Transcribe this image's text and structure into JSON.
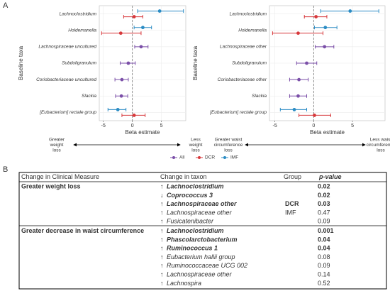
{
  "panel_a_label": "A",
  "chart_data": [
    {
      "type": "forest",
      "x_label": "Beta estimate",
      "y_label": "Baseline taxa",
      "categories": [
        "Lachnoclostridium",
        "Holdemanella",
        "Lachnospiraceae  uncultured",
        "Subdoligranulum",
        "Coriobacteriaceae uncultured",
        "Slackia",
        "[Eubacterium] rectale group"
      ],
      "series": [
        {
          "name": "All",
          "color": "#7b4fa8",
          "values": [
            null,
            null,
            1.5,
            -0.7,
            -1.8,
            -1.9,
            null
          ],
          "lower": [
            null,
            null,
            0.4,
            -2.1,
            -3.0,
            -2.9,
            null
          ],
          "upper": [
            null,
            null,
            2.7,
            0.5,
            -0.7,
            -0.8,
            null
          ]
        },
        {
          "name": "DCR",
          "color": "#d7383b",
          "values": [
            0.3,
            -2.0,
            null,
            null,
            null,
            null,
            0.3
          ],
          "lower": [
            -1.5,
            -5.3,
            null,
            null,
            null,
            null,
            -1.8
          ],
          "upper": [
            1.8,
            1.5,
            null,
            null,
            null,
            null,
            2.2
          ]
        },
        {
          "name": "IMF",
          "color": "#2b8cc4",
          "values": [
            4.7,
            1.8,
            null,
            null,
            null,
            null,
            -2.5
          ],
          "lower": [
            0.9,
            0.3,
            null,
            null,
            null,
            null,
            -4.2
          ],
          "upper": [
            8.8,
            3.3,
            null,
            null,
            null,
            null,
            -1.1
          ]
        }
      ],
      "xlim": [
        -5.7,
        9.2
      ],
      "xticks": [
        -5,
        0,
        5
      ],
      "ref_line": 0,
      "grid": true,
      "left_annotation": [
        "Greater",
        "weight",
        "loss"
      ],
      "right_annotation": [
        "Less",
        "weight",
        "loss"
      ]
    },
    {
      "type": "forest",
      "x_label": "Beta estimate",
      "y_label": "Baseline taxa",
      "categories": [
        "Lachnoclostridium",
        "Holdemanella",
        "Lachnospiraceae  other",
        "Subdoligranulum",
        "Coriobacteriaceae other",
        "Slackia",
        "[Eubacterium] rectale group"
      ],
      "series": [
        {
          "name": "All",
          "color": "#7b4fa8",
          "values": [
            null,
            null,
            1.4,
            -0.9,
            -1.9,
            -2.0,
            null
          ],
          "lower": [
            null,
            null,
            0.2,
            -2.2,
            -3.1,
            -3.1,
            null
          ],
          "upper": [
            null,
            null,
            2.6,
            0.4,
            -0.7,
            -0.9,
            null
          ]
        },
        {
          "name": "DCR",
          "color": "#d7383b",
          "values": [
            0.3,
            -2.0,
            null,
            null,
            null,
            null,
            0.1
          ],
          "lower": [
            -1.2,
            -5.3,
            null,
            null,
            null,
            null,
            -1.9
          ],
          "upper": [
            1.7,
            1.2,
            null,
            null,
            null,
            null,
            2.2
          ]
        },
        {
          "name": "IMF",
          "color": "#2b8cc4",
          "values": [
            4.7,
            1.5,
            null,
            null,
            null,
            null,
            -2.5
          ],
          "lower": [
            0.9,
            0.1,
            null,
            null,
            null,
            null,
            -4.3
          ],
          "upper": [
            8.4,
            3.0,
            null,
            null,
            null,
            null,
            -0.9
          ]
        }
      ],
      "xlim": [
        -5.7,
        9.2
      ],
      "xticks": [
        -5,
        0,
        5
      ],
      "ref_line": 0,
      "grid": true,
      "left_annotation": [
        "Greater waist",
        "circumference",
        "loss"
      ],
      "right_annotation": [
        "Less waist",
        "circumference",
        "loss"
      ]
    }
  ],
  "panel_b_label": "B",
  "table": {
    "header": [
      "Change in Clinical Measure",
      "Change in taxon",
      "Group",
      "p-value"
    ],
    "sections": [
      {
        "measure": "Greater weight loss",
        "rows": [
          {
            "direction": "↑",
            "taxon": "Lachnoclostridium",
            "p": 0.02,
            "significant": true
          },
          {
            "direction": "↓",
            "taxon": "Coprococcus 3",
            "p": 0.02,
            "significant": true
          },
          {
            "direction": "↑",
            "taxon": "Lachnospiraceae other",
            "group": "DCR",
            "p": 0.03,
            "significant": true
          },
          {
            "direction": "↑",
            "taxon": "Lachnospiraceae other",
            "group": "IMF",
            "p": 0.47,
            "significant": false
          },
          {
            "direction": "↑",
            "taxon": "Fusicatenibacter",
            "p": 0.09,
            "significant": false
          }
        ]
      },
      {
        "measure": "Greater decrease in waist circumference",
        "rows": [
          {
            "direction": "↑",
            "taxon": "Lachnoclostridium",
            "p": 0.001,
            "significant": true
          },
          {
            "direction": "↑",
            "taxon": "Phascolarctobacterium",
            "p": 0.04,
            "significant": true
          },
          {
            "direction": "↑",
            "taxon": "Ruminococcus 1",
            "p": 0.04,
            "significant": true
          },
          {
            "direction": "↑",
            "taxon": "Eubacterium hallii group",
            "p": 0.08,
            "significant": false
          },
          {
            "direction": "↑",
            "taxon": "Ruminococcaceae UCG 002",
            "p": 0.09,
            "significant": false
          },
          {
            "direction": "↑",
            "taxon": "Lachnospiraceae other",
            "p": 0.14,
            "significant": false
          },
          {
            "direction": "↑",
            "taxon": "Lachnospira",
            "p": 0.52,
            "significant": false
          }
        ]
      }
    ]
  }
}
